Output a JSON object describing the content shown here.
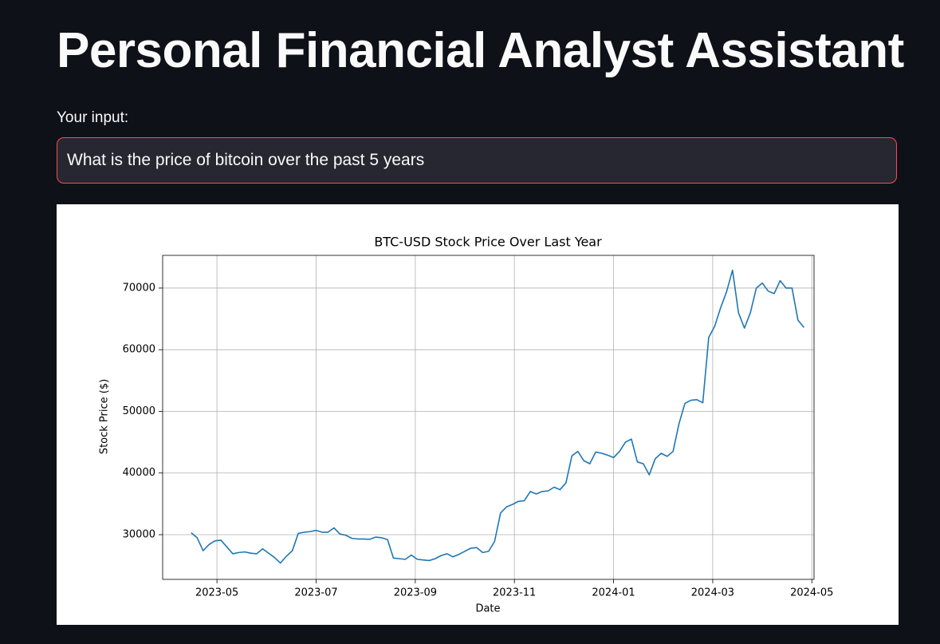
{
  "header": {
    "title": "Personal Financial Analyst Assistant"
  },
  "input": {
    "label": "Your input:",
    "value": "What is the price of bitcoin over the past 5 years"
  },
  "chart_data": {
    "type": "line",
    "title": "BTC-USD Stock Price Over Last Year",
    "x_label": "Date",
    "y_label": "Stock Price ($)",
    "grid": true,
    "xlim": [
      2023.242,
      2024.337
    ],
    "xticks": [
      {
        "value": 2023.3333,
        "label": "2023-05"
      },
      {
        "value": 2023.5,
        "label": "2023-07"
      },
      {
        "value": 2023.6667,
        "label": "2023-09"
      },
      {
        "value": 2023.8333,
        "label": "2023-11"
      },
      {
        "value": 2024.0,
        "label": "2024-01"
      },
      {
        "value": 2024.1667,
        "label": "2024-03"
      },
      {
        "value": 2024.3333,
        "label": "2024-05"
      }
    ],
    "ylim": [
      22750,
      75300
    ],
    "yticks": [
      30000,
      40000,
      50000,
      60000,
      70000
    ],
    "x": [
      2023.29,
      2023.3,
      2023.31,
      2023.32,
      2023.33,
      2023.34,
      2023.35,
      2023.36,
      2023.37,
      2023.38,
      2023.39,
      2023.4,
      2023.41,
      2023.42,
      2023.43,
      2023.44,
      2023.45,
      2023.46,
      2023.47,
      2023.48,
      2023.49,
      2023.5,
      2023.51,
      2023.52,
      2023.53,
      2023.54,
      2023.55,
      2023.56,
      2023.57,
      2023.58,
      2023.59,
      2023.6,
      2023.61,
      2023.62,
      2023.63,
      2023.64,
      2023.65,
      2023.66,
      2023.67,
      2023.68,
      2023.69,
      2023.7,
      2023.71,
      2023.72,
      2023.73,
      2023.74,
      2023.75,
      2023.76,
      2023.77,
      2023.78,
      2023.79,
      2023.8,
      2023.81,
      2023.82,
      2023.83,
      2023.84,
      2023.85,
      2023.86,
      2023.87,
      2023.88,
      2023.89,
      2023.9,
      2023.91,
      2023.92,
      2023.93,
      2023.94,
      2023.95,
      2023.96,
      2023.97,
      2023.98,
      2023.99,
      2024.0,
      2024.01,
      2024.02,
      2024.03,
      2024.04,
      2024.05,
      2024.06,
      2024.07,
      2024.08,
      2024.09,
      2024.1,
      2024.11,
      2024.12,
      2024.13,
      2024.14,
      2024.15,
      2024.16,
      2024.17,
      2024.18,
      2024.19,
      2024.2,
      2024.21,
      2024.22,
      2024.23,
      2024.24,
      2024.25,
      2024.26,
      2024.27,
      2024.28,
      2024.29,
      2024.3,
      2024.31,
      2024.32
    ],
    "series": [
      {
        "name": "BTC-USD",
        "color": "#1f77b4",
        "values": [
          30300,
          29500,
          27400,
          28400,
          29000,
          29100,
          28000,
          26900,
          27100,
          27200,
          27000,
          26900,
          27700,
          27000,
          26300,
          25400,
          26500,
          27400,
          30200,
          30400,
          30500,
          30700,
          30400,
          30400,
          31100,
          30100,
          29900,
          29400,
          29300,
          29300,
          29250,
          29600,
          29500,
          29200,
          26200,
          26100,
          26000,
          26700,
          26000,
          25900,
          25800,
          26100,
          26600,
          26900,
          26400,
          26800,
          27300,
          27800,
          27900,
          27100,
          27300,
          28900,
          33500,
          34500,
          34900,
          35400,
          35500,
          37000,
          36600,
          37000,
          37100,
          37700,
          37300,
          38400,
          42800,
          43500,
          42000,
          41500,
          43400,
          43200,
          42900,
          42500,
          43500,
          45000,
          45500,
          41800,
          41500,
          39700,
          42300,
          43200,
          42700,
          43500,
          48000,
          51300,
          51800,
          51900,
          51400,
          62000,
          63800,
          66800,
          69400,
          72900,
          66000,
          63500,
          66000,
          70000,
          70800,
          69500,
          69100,
          71200,
          70000,
          70000,
          64800,
          63600
        ]
      }
    ]
  }
}
